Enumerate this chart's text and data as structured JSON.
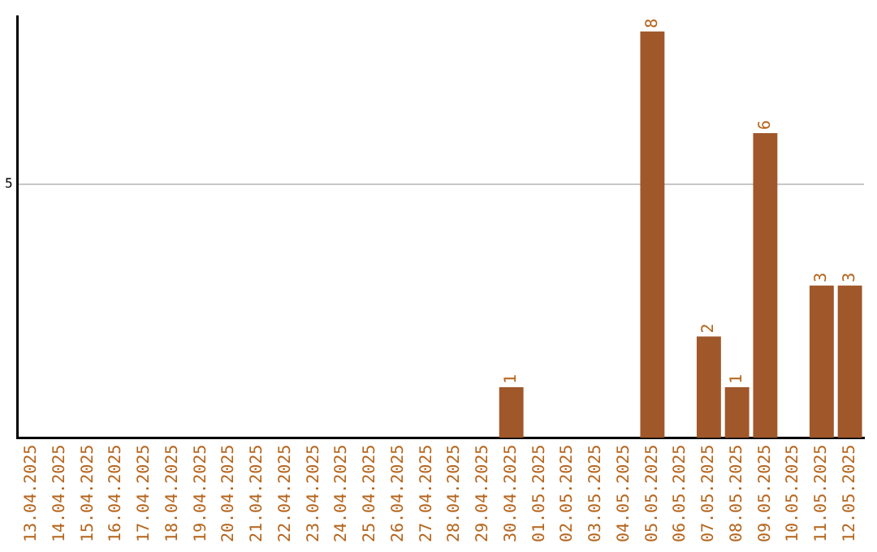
{
  "chart_data": {
    "type": "bar",
    "categories": [
      "13.04.2025",
      "14.04.2025",
      "15.04.2025",
      "16.04.2025",
      "17.04.2025",
      "18.04.2025",
      "19.04.2025",
      "20.04.2025",
      "21.04.2025",
      "22.04.2025",
      "23.04.2025",
      "24.04.2025",
      "25.04.2025",
      "26.04.2025",
      "27.04.2025",
      "28.04.2025",
      "29.04.2025",
      "30.04.2025",
      "01.05.2025",
      "02.05.2025",
      "03.05.2025",
      "04.05.2025",
      "05.05.2025",
      "06.05.2025",
      "07.05.2025",
      "08.05.2025",
      "09.05.2025",
      "10.05.2025",
      "11.05.2025",
      "12.05.2025"
    ],
    "values": [
      null,
      null,
      null,
      null,
      null,
      null,
      null,
      null,
      null,
      null,
      null,
      null,
      null,
      null,
      null,
      null,
      null,
      1,
      null,
      null,
      null,
      null,
      8,
      null,
      2,
      1,
      6,
      null,
      3,
      3
    ],
    "color": "#a0572a",
    "ylim": [
      0,
      8.3
    ],
    "yticks": [
      5
    ],
    "grid": "y",
    "legend": false,
    "data_labels": true
  }
}
